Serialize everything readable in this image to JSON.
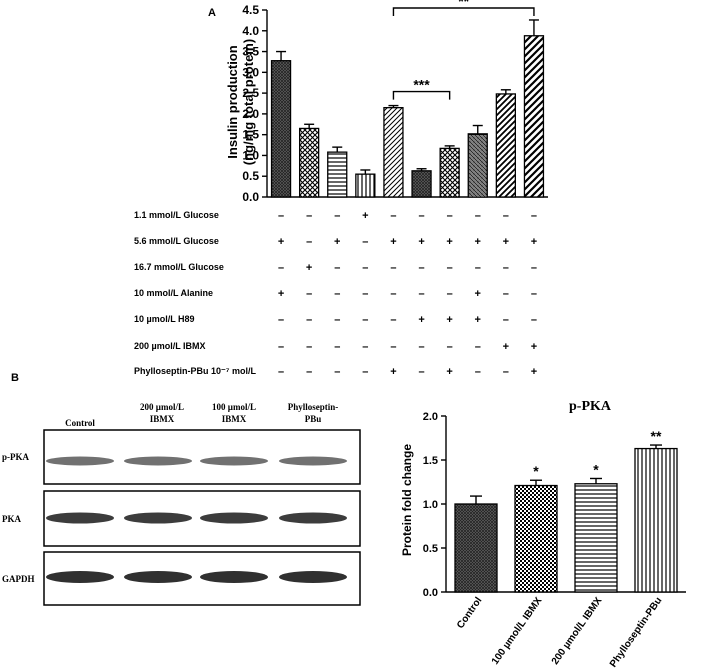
{
  "panel_a_label": "A",
  "panel_b_label": "B",
  "chart_data": [
    {
      "type": "bar",
      "ylabel_line1": "Insulin production",
      "ylabel_line2": "(ng/mg total protein)",
      "ylim": [
        0,
        4.5
      ],
      "yticks": [
        "0.0",
        "0.5",
        "1.0",
        "1.5",
        "2.0",
        "2.5",
        "3.0",
        "3.5",
        "4.0",
        "4.5"
      ],
      "values": [
        3.28,
        1.65,
        1.08,
        0.55,
        2.15,
        0.63,
        1.17,
        1.52,
        2.48,
        3.88
      ],
      "errors": [
        0.22,
        0.1,
        0.12,
        0.1,
        0.05,
        0.05,
        0.06,
        0.2,
        0.1,
        0.38
      ],
      "patterns": [
        "dense",
        "cross",
        "hlines",
        "vlines",
        "diag1",
        "dense",
        "cross",
        "hatchcross",
        "diag2",
        "diag3"
      ],
      "significance": [
        {
          "from": 4,
          "to": 9,
          "label": "**"
        },
        {
          "from": 4,
          "to": 6,
          "label": "***"
        }
      ],
      "conditions": [
        {
          "label": "1.1 mmol/L Glucose",
          "marks": [
            "–",
            "–",
            "–",
            "+",
            "–",
            "–",
            "–",
            "–",
            "–",
            "–"
          ]
        },
        {
          "label": "5.6 mmol/L Glucose",
          "marks": [
            "+",
            "–",
            "+",
            "–",
            "+",
            "+",
            "+",
            "+",
            "+",
            "+"
          ]
        },
        {
          "label": "16.7 mmol/L Glucose",
          "marks": [
            "–",
            "+",
            "–",
            "–",
            "–",
            "–",
            "–",
            "–",
            "–",
            "–"
          ]
        },
        {
          "label": "10 mmol/L Alanine",
          "marks": [
            "+",
            "–",
            "–",
            "–",
            "–",
            "–",
            "–",
            "+",
            "–",
            "–"
          ]
        },
        {
          "label": "10 µmol/L  H89",
          "marks": [
            "–",
            "–",
            "–",
            "–",
            "–",
            "+",
            "+",
            "+",
            "–",
            "–"
          ]
        },
        {
          "label": "200 µmol/L  IBMX",
          "marks": [
            "–",
            "–",
            "–",
            "–",
            "–",
            "–",
            "–",
            "–",
            "+",
            "+"
          ]
        },
        {
          "label": "Phylloseptin-PBu 10⁻⁷ mol/L",
          "marks": [
            "–",
            "–",
            "–",
            "–",
            "+",
            "–",
            "+",
            "–",
            "–",
            "+"
          ]
        }
      ]
    },
    {
      "type": "bar",
      "title": "p-PKA",
      "ylabel": "Protein fold change",
      "ylim": [
        0,
        2.0
      ],
      "yticks": [
        "0.0",
        "0.5",
        "1.0",
        "1.5",
        "2.0"
      ],
      "categories": [
        "Control",
        "100 µmol/L IBMX",
        "200 µmol/L IBMX",
        "Phylloseptin-PBu"
      ],
      "values": [
        1.0,
        1.21,
        1.23,
        1.63
      ],
      "errors": [
        0.09,
        0.06,
        0.06,
        0.04
      ],
      "annotations": [
        "",
        "*",
        "*",
        "**"
      ],
      "patterns": [
        "dense",
        "checker",
        "hlines",
        "vlines"
      ]
    }
  ],
  "blot": {
    "columns": [
      "Control",
      "200 µmol/L\nIBMX",
      "100 µmol/L\nIBMX",
      "Phylloseptin-\nPBu"
    ],
    "rows": [
      "p-PKA",
      "PKA",
      "GAPDH"
    ]
  }
}
